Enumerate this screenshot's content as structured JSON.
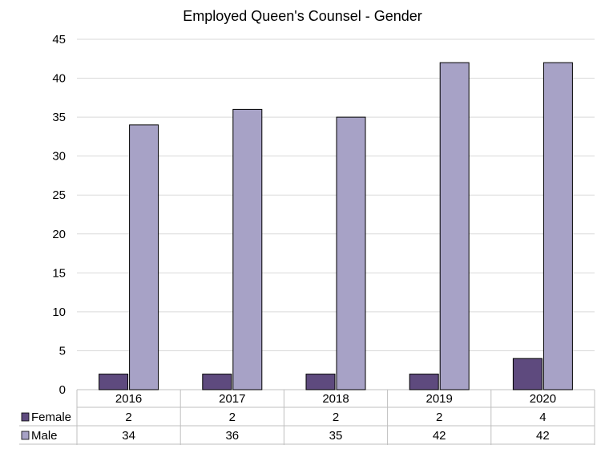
{
  "chart_data": {
    "type": "bar",
    "title": "Employed Queen's Counsel - Gender",
    "categories": [
      "2016",
      "2017",
      "2018",
      "2019",
      "2020"
    ],
    "series": [
      {
        "name": "Female",
        "values": [
          2,
          2,
          2,
          2,
          4
        ],
        "color": "#5e4a7e"
      },
      {
        "name": "Male",
        "values": [
          34,
          36,
          35,
          42,
          42
        ],
        "color": "#a7a2c6"
      }
    ],
    "ylim": [
      0,
      45
    ],
    "yticks": [
      0,
      5,
      10,
      15,
      20,
      25,
      30,
      35,
      40,
      45
    ],
    "grid": true,
    "legend": "data-table-below",
    "data_table": true
  }
}
